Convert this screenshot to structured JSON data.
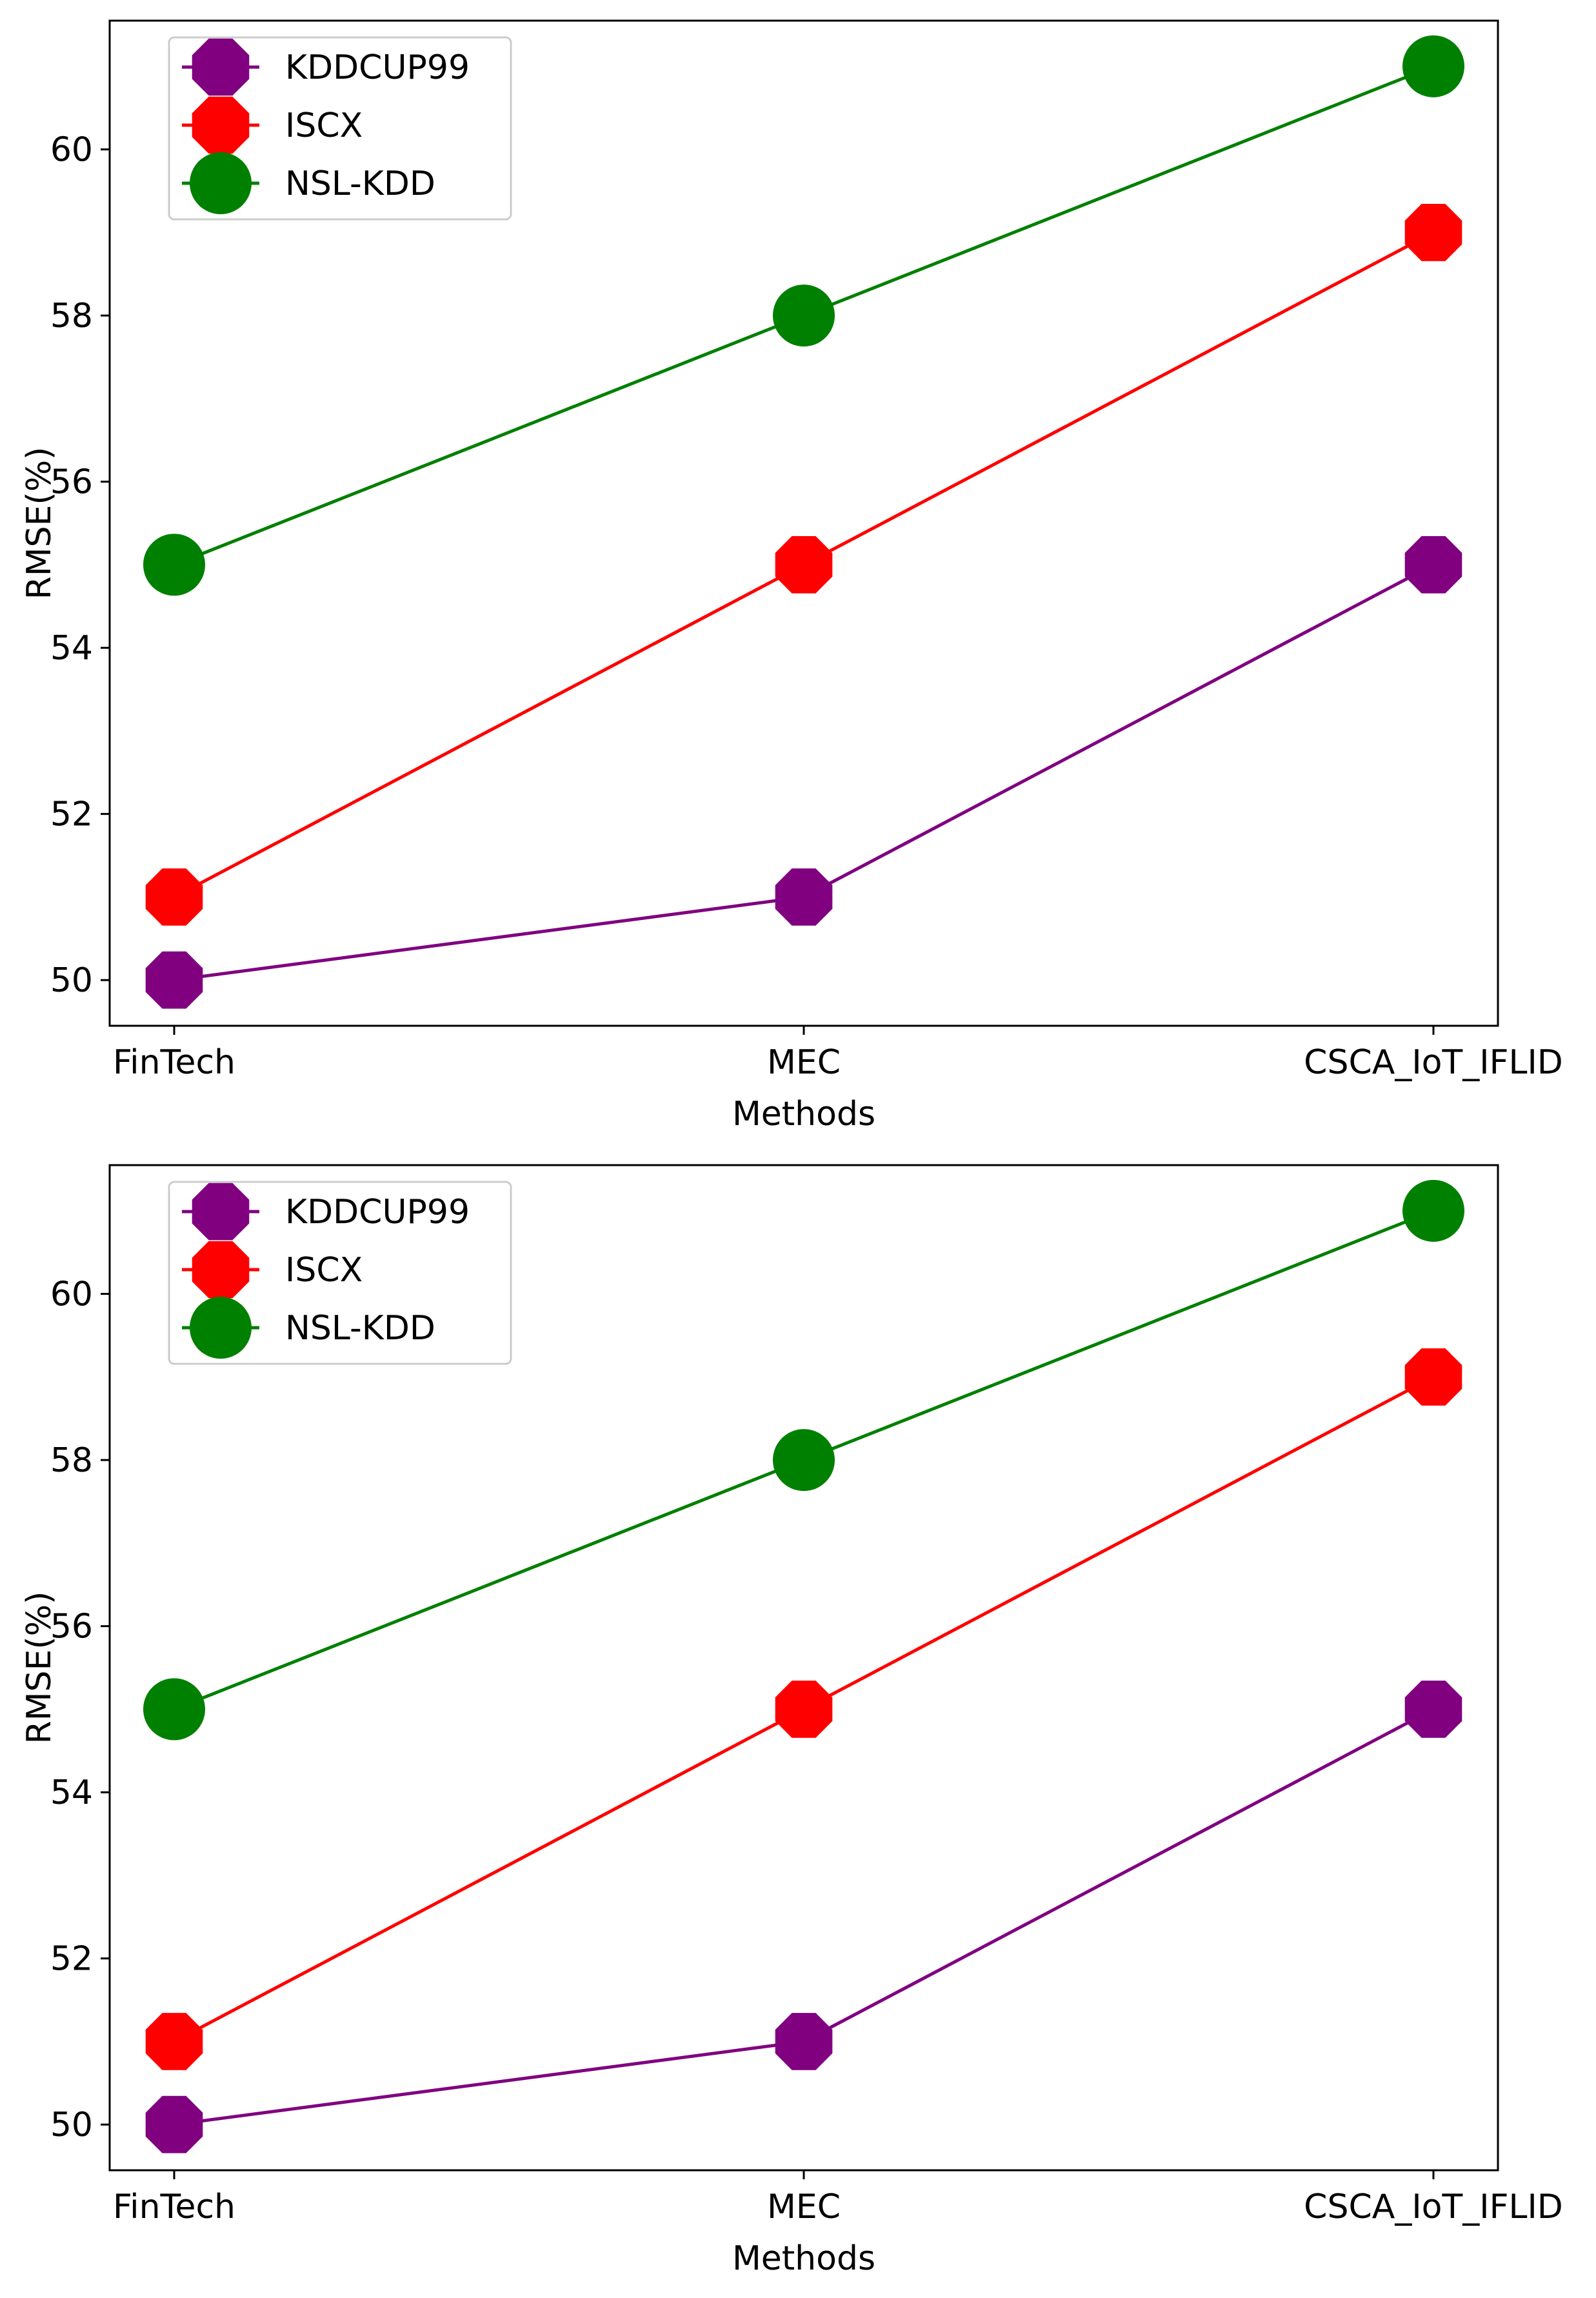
{
  "chart_data": [
    {
      "type": "line",
      "categories": [
        "FinTech",
        "MEC",
        "CSCA_IoT_IFLID"
      ],
      "series": [
        {
          "name": "KDDCUP99",
          "color": "#800080",
          "values": [
            50,
            51,
            55
          ]
        },
        {
          "name": "ISCX",
          "color": "#ff0000",
          "values": [
            51,
            55,
            59
          ]
        },
        {
          "name": "NSL-KDD",
          "color": "#008000",
          "values": [
            55,
            58,
            61
          ]
        }
      ],
      "xlabel": "Methods",
      "ylabel": "RMSE(%)",
      "yticks": [
        50,
        52,
        54,
        56,
        58,
        60
      ],
      "ylim": [
        49.45,
        61.55
      ],
      "legend": "top-left",
      "grid": false
    },
    {
      "type": "line",
      "categories": [
        "FinTech",
        "MEC",
        "CSCA_IoT_IFLID"
      ],
      "series": [
        {
          "name": "KDDCUP99",
          "color": "#800080",
          "values": [
            50,
            51,
            55
          ]
        },
        {
          "name": "ISCX",
          "color": "#ff0000",
          "values": [
            51,
            55,
            59
          ]
        },
        {
          "name": "NSL-KDD",
          "color": "#008000",
          "values": [
            55,
            58,
            61
          ]
        }
      ],
      "xlabel": "Methods",
      "ylabel": "RMSE(%)",
      "yticks": [
        50,
        52,
        54,
        56,
        58,
        60
      ],
      "ylim": [
        49.45,
        61.55
      ],
      "legend": "top-left",
      "grid": false
    }
  ]
}
